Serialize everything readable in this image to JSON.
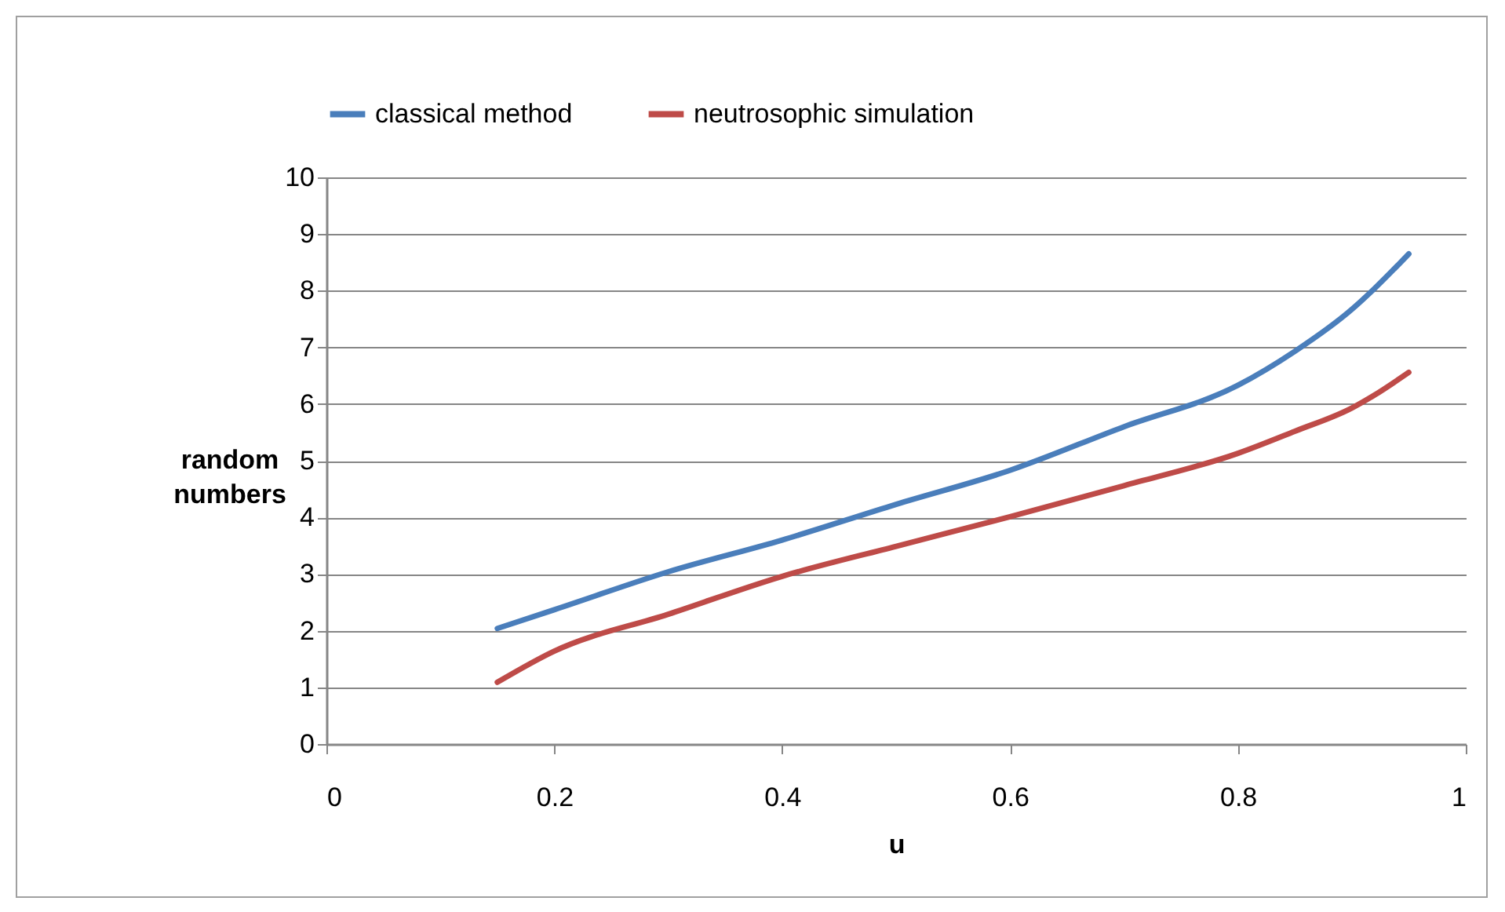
{
  "chart_data": {
    "type": "line",
    "xlabel": "u",
    "ylabel": "random numbers",
    "xlim": [
      0,
      1
    ],
    "xticks": [
      0,
      0.2,
      0.4,
      0.6,
      0.8,
      1
    ],
    "ylim": [
      0,
      10
    ],
    "yticks": [
      0,
      1,
      2,
      3,
      4,
      5,
      6,
      7,
      8,
      9,
      10
    ],
    "grid": "y",
    "legend": "top",
    "marker": "none",
    "line_style": "solid",
    "x": [
      0.15,
      0.2,
      0.3,
      0.4,
      0.5,
      0.6,
      0.7,
      0.8,
      0.85,
      0.9,
      0.92,
      0.95
    ],
    "series": [
      {
        "name": "classical method",
        "color": "#4a7ebb",
        "values": [
          2.04,
          2.37,
          3.04,
          3.6,
          4.23,
          4.83,
          5.6,
          6.33,
          6.93,
          7.67,
          8.04,
          8.65
        ]
      },
      {
        "name": "neutrosophic simulation",
        "color": "#be4b48",
        "values": [
          1.09,
          1.64,
          2.29,
          2.96,
          3.49,
          4.01,
          4.56,
          5.13,
          5.52,
          5.93,
          6.16,
          6.56
        ]
      }
    ]
  }
}
